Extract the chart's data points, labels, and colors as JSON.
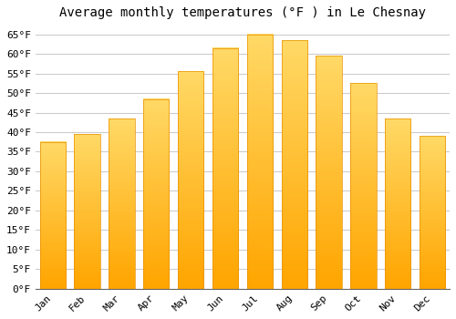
{
  "title": "Average monthly temperatures (°F ) in Le Chesnay",
  "months": [
    "Jan",
    "Feb",
    "Mar",
    "Apr",
    "May",
    "Jun",
    "Jul",
    "Aug",
    "Sep",
    "Oct",
    "Nov",
    "Dec"
  ],
  "values": [
    37.5,
    39.5,
    43.5,
    48.5,
    55.5,
    61.5,
    65.0,
    63.5,
    59.5,
    52.5,
    43.5,
    39.0
  ],
  "bar_color_top": "#FFD966",
  "bar_color_bottom": "#FFA500",
  "bar_edge_color": "#E89000",
  "background_color": "#FFFFFF",
  "grid_color": "#CCCCCC",
  "yticks": [
    0,
    5,
    10,
    15,
    20,
    25,
    30,
    35,
    40,
    45,
    50,
    55,
    60,
    65
  ],
  "ylim": [
    0,
    67
  ],
  "title_fontsize": 10,
  "tick_fontsize": 8,
  "font_family": "monospace"
}
